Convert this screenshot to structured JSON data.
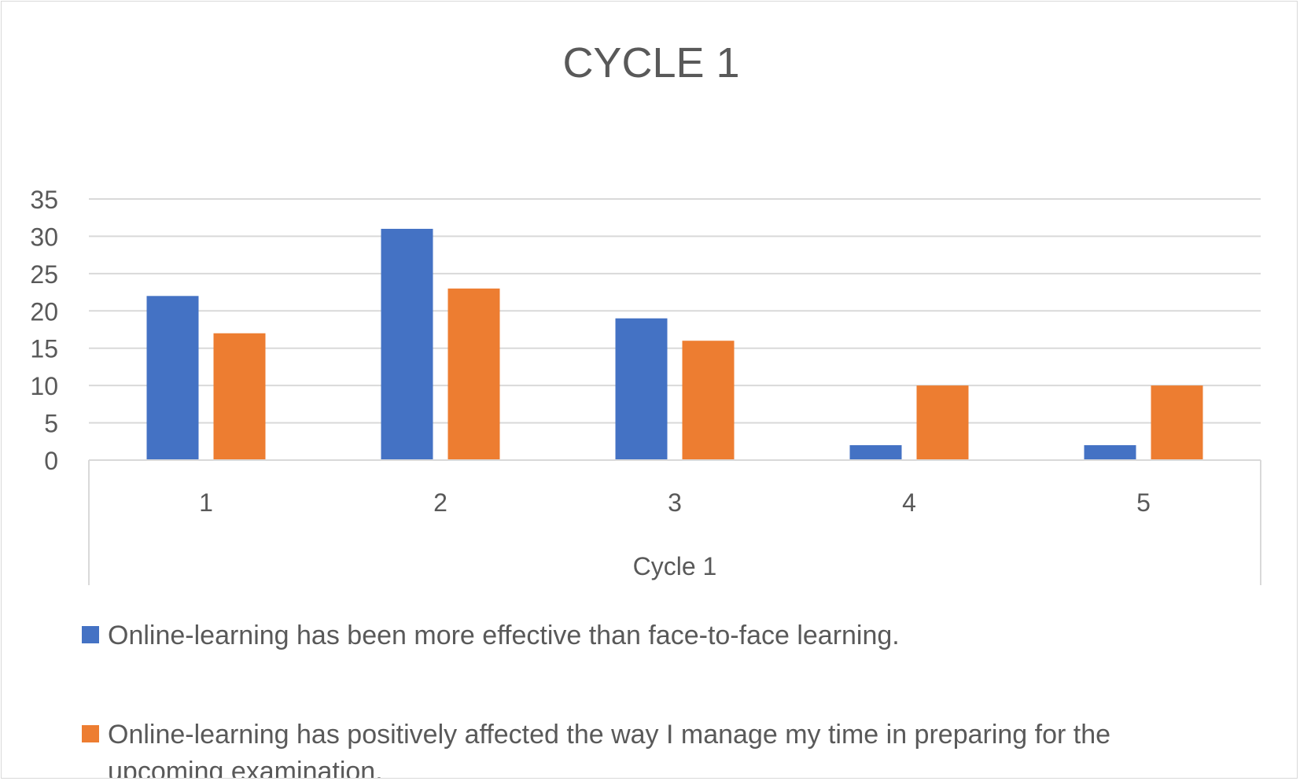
{
  "chart_data": {
    "type": "bar",
    "title": "CYCLE 1",
    "xlabel": "Cycle 1",
    "ylabel": "",
    "categories": [
      "1",
      "2",
      "3",
      "4",
      "5"
    ],
    "ylim": [
      0,
      35
    ],
    "yticks": [
      0,
      5,
      10,
      15,
      20,
      25,
      30,
      35
    ],
    "grid": true,
    "legend_position": "bottom",
    "series": [
      {
        "name": "Online-learning has been more effective than face-to-face learning.",
        "color": "#4472c4",
        "values": [
          22,
          31,
          19,
          2,
          2
        ]
      },
      {
        "name": "Online-learning has positively affected the way I manage my time in preparing for the upcoming examination.",
        "legend_lines": [
          "Online-learning has positively affected the way I manage my time in preparing for the",
          "upcoming examination."
        ],
        "color": "#ed7d31",
        "values": [
          17,
          23,
          16,
          10,
          10
        ]
      }
    ]
  }
}
